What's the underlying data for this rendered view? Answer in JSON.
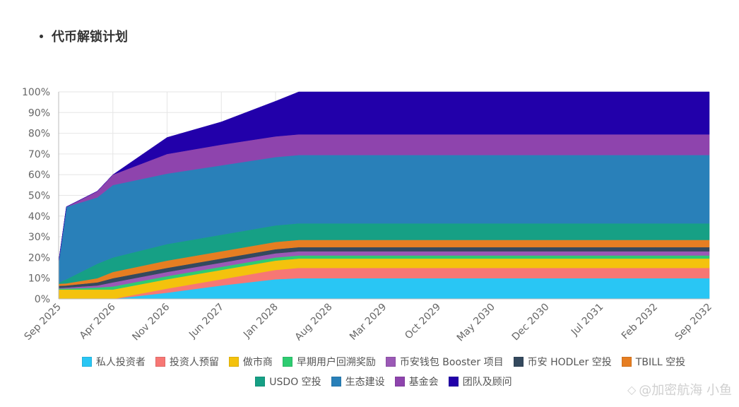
{
  "page": {
    "heading": "代币解锁计划",
    "watermark_text": "@加密航海 小鱼"
  },
  "chart_data": {
    "type": "area",
    "stacked": true,
    "x": [
      "Sep 2025",
      "Oct 2025",
      "Feb 2026",
      "Apr 2026",
      "Nov 2026",
      "Jun 2027",
      "Jan 2028",
      "Apr 2028",
      "Aug 2028",
      "Mar 2029",
      "Oct 2029",
      "May 2030",
      "Dec 2030",
      "Jul 2031",
      "Feb 2032",
      "Sep 2032"
    ],
    "x_months": [
      0,
      1,
      5,
      7,
      14,
      21,
      28,
      31,
      35,
      42,
      49,
      56,
      63,
      70,
      77,
      84
    ],
    "tick_labels": [
      "Sep 2025",
      "Apr 2026",
      "Nov 2026",
      "Jun 2027",
      "Jan 2028",
      "Aug 2028",
      "Mar 2029",
      "Oct 2029",
      "May 2030",
      "Dec 2030",
      "Jul 2031",
      "Feb 2032",
      "Sep 2032"
    ],
    "tick_months": [
      0,
      7,
      14,
      21,
      28,
      35,
      42,
      49,
      56,
      63,
      70,
      77,
      84
    ],
    "ylim": [
      0,
      100
    ],
    "y_ticks": [
      "0%",
      "10%",
      "20%",
      "30%",
      "40%",
      "50%",
      "60%",
      "70%",
      "80%",
      "90%",
      "100%"
    ],
    "series": [
      {
        "name": "私人投资者",
        "color": "#29c6f4",
        "values": [
          0,
          0,
          0,
          0,
          3,
          6.5,
          9.5,
          10,
          10,
          10,
          10,
          10,
          10,
          10,
          10,
          10
        ]
      },
      {
        "name": "投资人预留",
        "color": "#f77774",
        "values": [
          0,
          0,
          0,
          0,
          2,
          3,
          4.5,
          5,
          5,
          5,
          5,
          5,
          5,
          5,
          5,
          5
        ]
      },
      {
        "name": "做市商",
        "color": "#f4c20d",
        "values": [
          4.5,
          4.5,
          4.5,
          4.5,
          4.5,
          4.5,
          4.5,
          4.5,
          4.5,
          4.5,
          4.5,
          4.5,
          4.5,
          4.5,
          4.5,
          4.5
        ]
      },
      {
        "name": "早期用户回溯奖励",
        "color": "#2ecc71",
        "values": [
          0.5,
          0.5,
          1,
          1.5,
          1.5,
          1.5,
          1.5,
          1.5,
          1.5,
          1.5,
          1.5,
          1.5,
          1.5,
          1.5,
          1.5,
          1.5
        ]
      },
      {
        "name": "币安钱包 Booster 项目",
        "color": "#9b59b6",
        "values": [
          0.3,
          0.5,
          1,
          2,
          2,
          2,
          2,
          2,
          2,
          2,
          2,
          2,
          2,
          2,
          2,
          2
        ]
      },
      {
        "name": "币安 HODLer 空投",
        "color": "#34495e",
        "values": [
          1,
          1,
          1.5,
          2,
          2,
          2,
          2,
          2,
          2,
          2,
          2,
          2,
          2,
          2,
          2,
          2
        ]
      },
      {
        "name": "TBILL 空投",
        "color": "#e67e22",
        "values": [
          1,
          1,
          2,
          3,
          3.5,
          3.5,
          3.5,
          3.5,
          3.5,
          3.5,
          3.5,
          3.5,
          3.5,
          3.5,
          3.5,
          3.5
        ]
      },
      {
        "name": "USDO 空投",
        "color": "#16a085",
        "values": [
          0.5,
          2,
          7,
          7,
          8,
          8,
          8,
          8,
          8,
          8,
          8,
          8,
          8,
          8,
          8,
          8
        ]
      },
      {
        "name": "生态建设",
        "color": "#2980b9",
        "values": [
          10,
          35,
          32,
          35,
          34,
          33.5,
          33,
          33,
          33,
          33,
          33,
          33,
          33,
          33,
          33,
          33
        ]
      },
      {
        "name": "基金会",
        "color": "#8e44ad",
        "values": [
          0,
          0,
          3,
          5,
          9.5,
          10,
          10,
          10,
          10,
          10,
          10,
          10,
          10,
          10,
          10,
          10
        ]
      },
      {
        "name": "团队及顾问",
        "color": "#2200aa",
        "values": [
          0,
          0,
          0,
          0,
          8,
          11,
          17,
          20.5,
          20.5,
          20.5,
          20.5,
          20.5,
          20.5,
          20.5,
          20.5,
          20.5
        ]
      }
    ]
  }
}
